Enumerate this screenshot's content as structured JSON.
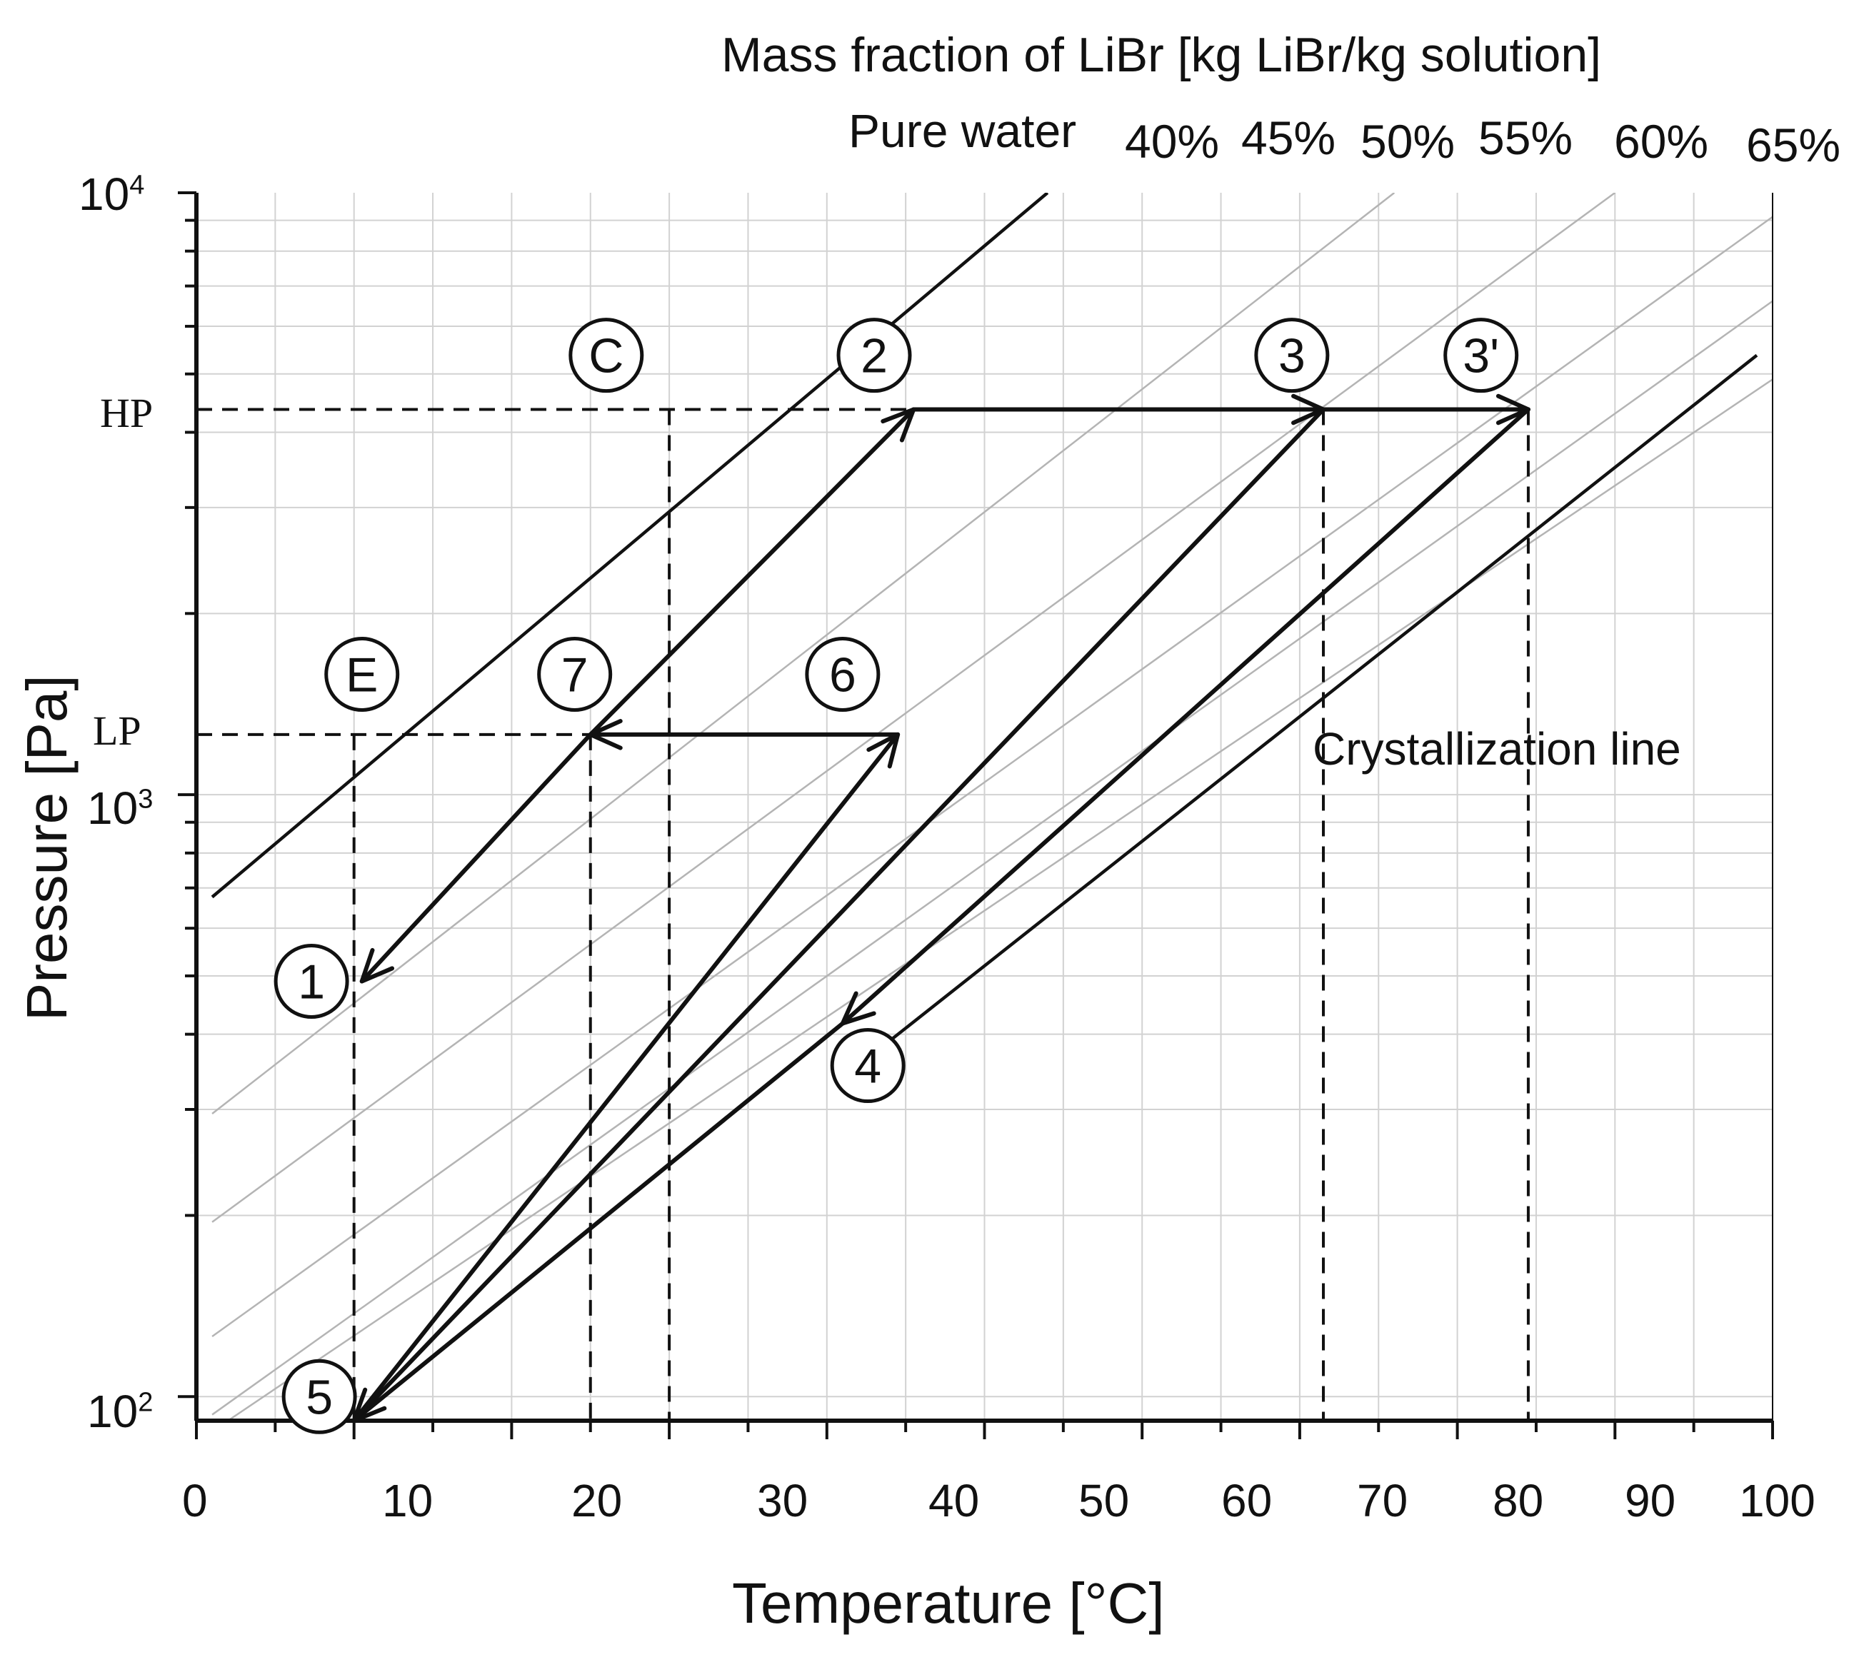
{
  "chart_data": {
    "type": "line",
    "title": "Mass fraction of LiBr [kg LiBr/kg solution]",
    "xlabel": "Temperature [°C]",
    "ylabel": "Pressure [Pa]",
    "xlim": [
      0,
      100
    ],
    "ylim_log10": [
      1.96,
      4.0
    ],
    "y_scale": "log",
    "x_ticks": [
      "0",
      "10",
      "20",
      "30",
      "40",
      "50",
      "60",
      "70",
      "80",
      "90",
      "100"
    ],
    "y_ticks": [
      {
        "base": "10",
        "exp": "2"
      },
      {
        "base": "10",
        "exp": "3"
      },
      {
        "base": "10",
        "exp": "4"
      }
    ],
    "pressure_levels": [
      {
        "label": "HP",
        "log10_p": 3.64
      },
      {
        "label": "LP",
        "log10_p": 3.1
      }
    ],
    "concentration_labels": [
      "Pure water",
      "40%",
      "45%",
      "50%",
      "55%",
      "60%",
      "65%"
    ],
    "crystallization_label": "Crystallization line",
    "pure_water_line": [
      [
        1,
        2.83
      ],
      [
        54,
        4.0
      ]
    ],
    "crystallization_line": [
      [
        42,
        2.55
      ],
      [
        99,
        3.73
      ]
    ],
    "iso_lines": [
      [
        [
          1,
          2.47
        ],
        [
          76,
          4.0
        ]
      ],
      [
        [
          1,
          2.29
        ],
        [
          90,
          4.0
        ]
      ],
      [
        [
          1,
          2.1
        ],
        [
          100,
          3.96
        ]
      ],
      [
        [
          1,
          1.97
        ],
        [
          100,
          3.82
        ]
      ],
      [
        [
          2,
          1.96
        ],
        [
          100,
          3.69
        ]
      ]
    ],
    "points": [
      {
        "id": "C",
        "x": 30,
        "y": 3.64
      },
      {
        "id": "2",
        "x": 45.5,
        "y": 3.64
      },
      {
        "id": "3",
        "x": 71.5,
        "y": 3.64
      },
      {
        "id": "3'",
        "x": 84.5,
        "y": 3.64
      },
      {
        "id": "E",
        "x": 10,
        "y": 3.1
      },
      {
        "id": "7",
        "x": 25,
        "y": 3.1
      },
      {
        "id": "6",
        "x": 44.5,
        "y": 3.1
      },
      {
        "id": "1",
        "x": 10.5,
        "y": 2.69
      },
      {
        "id": "4",
        "x": 41,
        "y": 2.62
      },
      {
        "id": "5",
        "x": 10,
        "y": 1.96
      }
    ],
    "circle_labels": [
      {
        "text": "C",
        "x": 26,
        "y": 3.73
      },
      {
        "text": "2",
        "x": 43,
        "y": 3.73
      },
      {
        "text": "3",
        "x": 69.5,
        "y": 3.73
      },
      {
        "text": "3'",
        "x": 81.5,
        "y": 3.73
      },
      {
        "text": "E",
        "x": 10.5,
        "y": 3.2
      },
      {
        "text": "7",
        "x": 24,
        "y": 3.2
      },
      {
        "text": "6",
        "x": 41,
        "y": 3.2
      },
      {
        "text": "1",
        "x": 7.3,
        "y": 2.69
      },
      {
        "text": "4",
        "x": 42.6,
        "y": 2.55
      },
      {
        "text": "5",
        "x": 7.8,
        "y": 2.0
      }
    ],
    "process_arrows": [
      {
        "from": [
          25,
          3.1
        ],
        "to": [
          45.5,
          3.64
        ]
      },
      {
        "from": [
          45.5,
          3.64
        ],
        "to": [
          71.5,
          3.64
        ]
      },
      {
        "from": [
          71.5,
          3.64
        ],
        "to": [
          84.5,
          3.64
        ]
      },
      {
        "from": [
          84.5,
          3.64
        ],
        "to": [
          41,
          2.62
        ]
      },
      {
        "from": [
          71.5,
          3.64
        ],
        "to": [
          10,
          1.96
        ]
      },
      {
        "from": [
          10,
          1.96
        ],
        "to": [
          44.5,
          3.1
        ]
      },
      {
        "from": [
          44.5,
          3.1
        ],
        "to": [
          25,
          3.1
        ]
      },
      {
        "from": [
          25,
          3.1
        ],
        "to": [
          10.5,
          2.69
        ]
      }
    ],
    "plain_lines": [
      {
        "from": [
          41,
          2.62
        ],
        "to": [
          10,
          1.96
        ]
      }
    ],
    "dashed_lines": [
      {
        "from": [
          0,
          3.64
        ],
        "to": [
          45.5,
          3.64
        ]
      },
      {
        "from": [
          0,
          3.1
        ],
        "to": [
          25,
          3.1
        ]
      },
      {
        "from": [
          10,
          3.1
        ],
        "to": [
          10,
          1.96
        ]
      },
      {
        "from": [
          25,
          3.1
        ],
        "to": [
          25,
          1.96
        ]
      },
      {
        "from": [
          30,
          3.64
        ],
        "to": [
          30,
          1.96
        ]
      },
      {
        "from": [
          71.5,
          3.64
        ],
        "to": [
          71.5,
          1.96
        ]
      },
      {
        "from": [
          84.5,
          3.64
        ],
        "to": [
          84.5,
          1.96
        ]
      }
    ]
  }
}
